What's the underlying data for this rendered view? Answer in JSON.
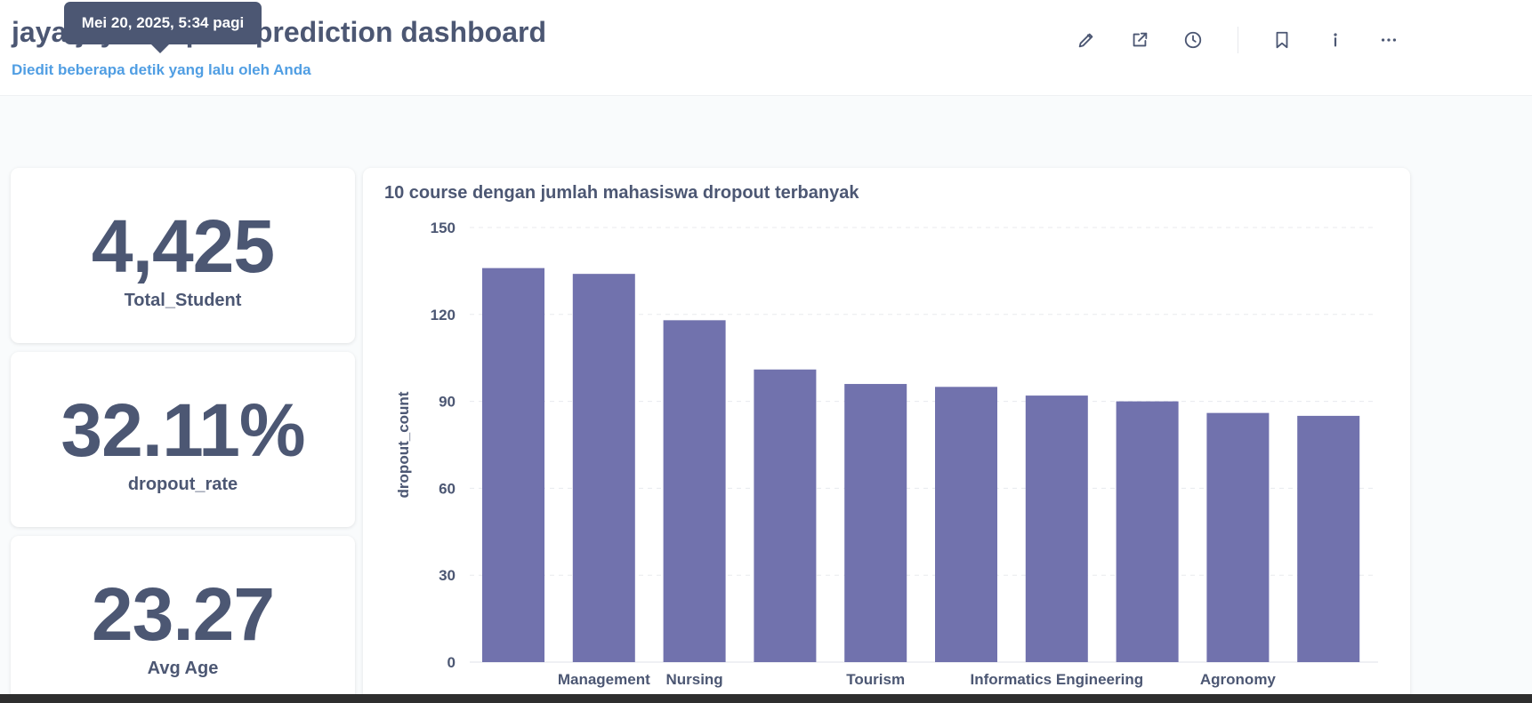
{
  "header": {
    "title": "jaya-jaya dropout prediction dashboard",
    "subtitle": "Diedit beberapa detik yang lalu oleh Anda",
    "tooltip": "Mei 20, 2025, 5:34 pagi",
    "actions": [
      "pencil-icon",
      "share-icon",
      "clock-icon",
      "bookmark-icon",
      "info-icon",
      "more-icon"
    ]
  },
  "scalars": [
    {
      "value": "4,425",
      "label": "Total_Student"
    },
    {
      "value": "32.11%",
      "label": "dropout_rate"
    },
    {
      "value": "23.27",
      "label": "Avg Age"
    }
  ],
  "colors": {
    "bar": "#7172ad",
    "text": "#4c5773",
    "accent": "#509ee3",
    "grid": "#e8eaee"
  },
  "chart_data": {
    "type": "bar",
    "title": "10 course dengan jumlah mahasiswa dropout terbanyak",
    "ylabel": "dropout_count",
    "xlabel": "",
    "ylim": [
      0,
      150
    ],
    "yticks": [
      0,
      30,
      60,
      90,
      120,
      150
    ],
    "grid": true,
    "categories": [
      "",
      "Management",
      "Nursing",
      "",
      "Tourism",
      "",
      "Informatics Engineering",
      "",
      "Agronomy",
      ""
    ],
    "values": [
      136,
      134,
      118,
      101,
      96,
      95,
      92,
      90,
      86,
      85
    ]
  }
}
